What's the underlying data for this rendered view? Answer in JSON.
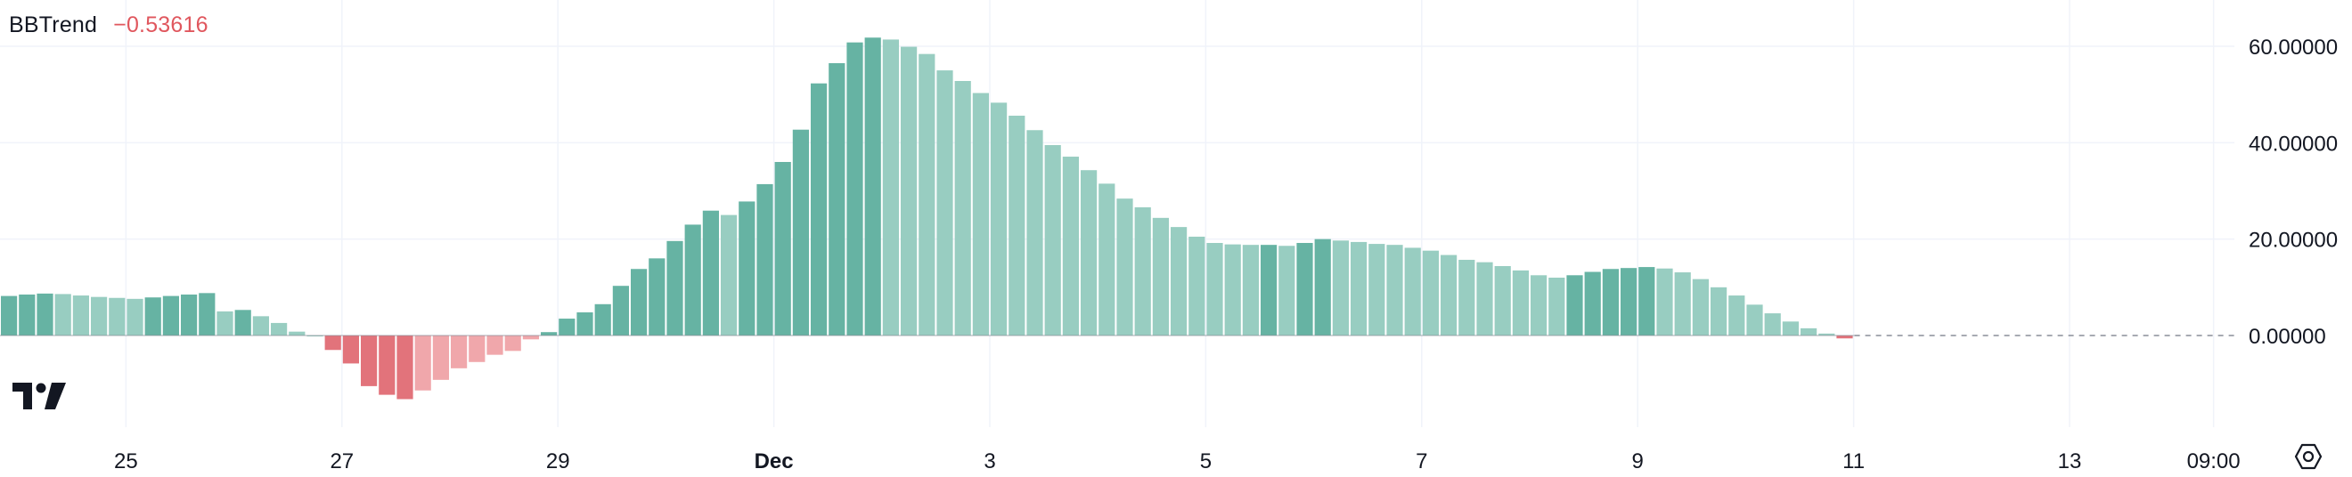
{
  "indicator": {
    "name": "BBTrend",
    "value": "−0.53616"
  },
  "colors": {
    "pos_strong": "#66b3a3",
    "pos_weak": "#98cdc1",
    "neg_strong": "#e2737b",
    "neg_weak": "#f0a7ab",
    "grid": "#f0f3fa",
    "zero_line": "#8a8e98",
    "text": "#131722",
    "value_text": "#e0575e"
  },
  "chart_data": {
    "type": "bar",
    "title": "",
    "xlabel": "",
    "ylabel": "",
    "ylim": [
      -13.5,
      62.5
    ],
    "y_ticks": [
      "60.00000",
      "40.00000",
      "20.00000",
      "0.00000"
    ],
    "y_tick_values": [
      60,
      40,
      20,
      0
    ],
    "x_ticks": [
      {
        "label": "25",
        "bar_index": 6.5,
        "bold": false
      },
      {
        "label": "27",
        "bar_index": 18.5,
        "bold": false
      },
      {
        "label": "29",
        "bar_index": 30.5,
        "bold": false
      },
      {
        "label": "Dec",
        "bar_index": 42.5,
        "bold": true
      },
      {
        "label": "3",
        "bar_index": 54.5,
        "bold": false
      },
      {
        "label": "5",
        "bar_index": 66.5,
        "bold": false
      },
      {
        "label": "7",
        "bar_index": 78.5,
        "bold": false
      },
      {
        "label": "9",
        "bar_index": 90.5,
        "bold": false
      },
      {
        "label": "11",
        "bar_index": 102.5,
        "bold": false
      },
      {
        "label": "13",
        "bar_index": 114.5,
        "bold": false
      },
      {
        "label": "09:00",
        "bar_index": 122.5,
        "bold": false
      }
    ],
    "series": [
      {
        "values": [
          8.2,
          8.5,
          8.7,
          8.6,
          8.3,
          8.0,
          7.8,
          7.6,
          7.9,
          8.2,
          8.5,
          8.8,
          5.0,
          5.3,
          4.0,
          2.6,
          0.8,
          0.0,
          -3.0,
          -5.8,
          -10.5,
          -12.3,
          -13.2,
          -11.4,
          -9.2,
          -6.8,
          -5.5,
          -4.0,
          -3.2,
          -0.8,
          0.7,
          3.5,
          4.8,
          6.5,
          10.3,
          13.8,
          16.0,
          19.6,
          23.0,
          25.9,
          25.0,
          27.8,
          31.4,
          36.0,
          42.7,
          52.3,
          56.5,
          60.8,
          61.8,
          61.4,
          59.9,
          58.4,
          55.0,
          52.8,
          50.3,
          48.3,
          45.6,
          42.6,
          39.5,
          37.1,
          34.3,
          31.5,
          28.4,
          26.6,
          24.4,
          22.5,
          20.5,
          19.2,
          18.9,
          18.8,
          18.8,
          18.6,
          19.2,
          20.0,
          19.7,
          19.4,
          19.0,
          18.8,
          18.2,
          17.6,
          16.7,
          15.7,
          15.2,
          14.4,
          13.5,
          12.5,
          12.0,
          12.5,
          13.2,
          13.8,
          14.0,
          14.2,
          13.9,
          13.1,
          11.7,
          10.0,
          8.3,
          6.4,
          4.6,
          2.9,
          1.5,
          0.4,
          -0.6
        ]
      }
    ],
    "zero_line_dashed_after_last_bar": true,
    "grid": true,
    "legend": "none"
  }
}
